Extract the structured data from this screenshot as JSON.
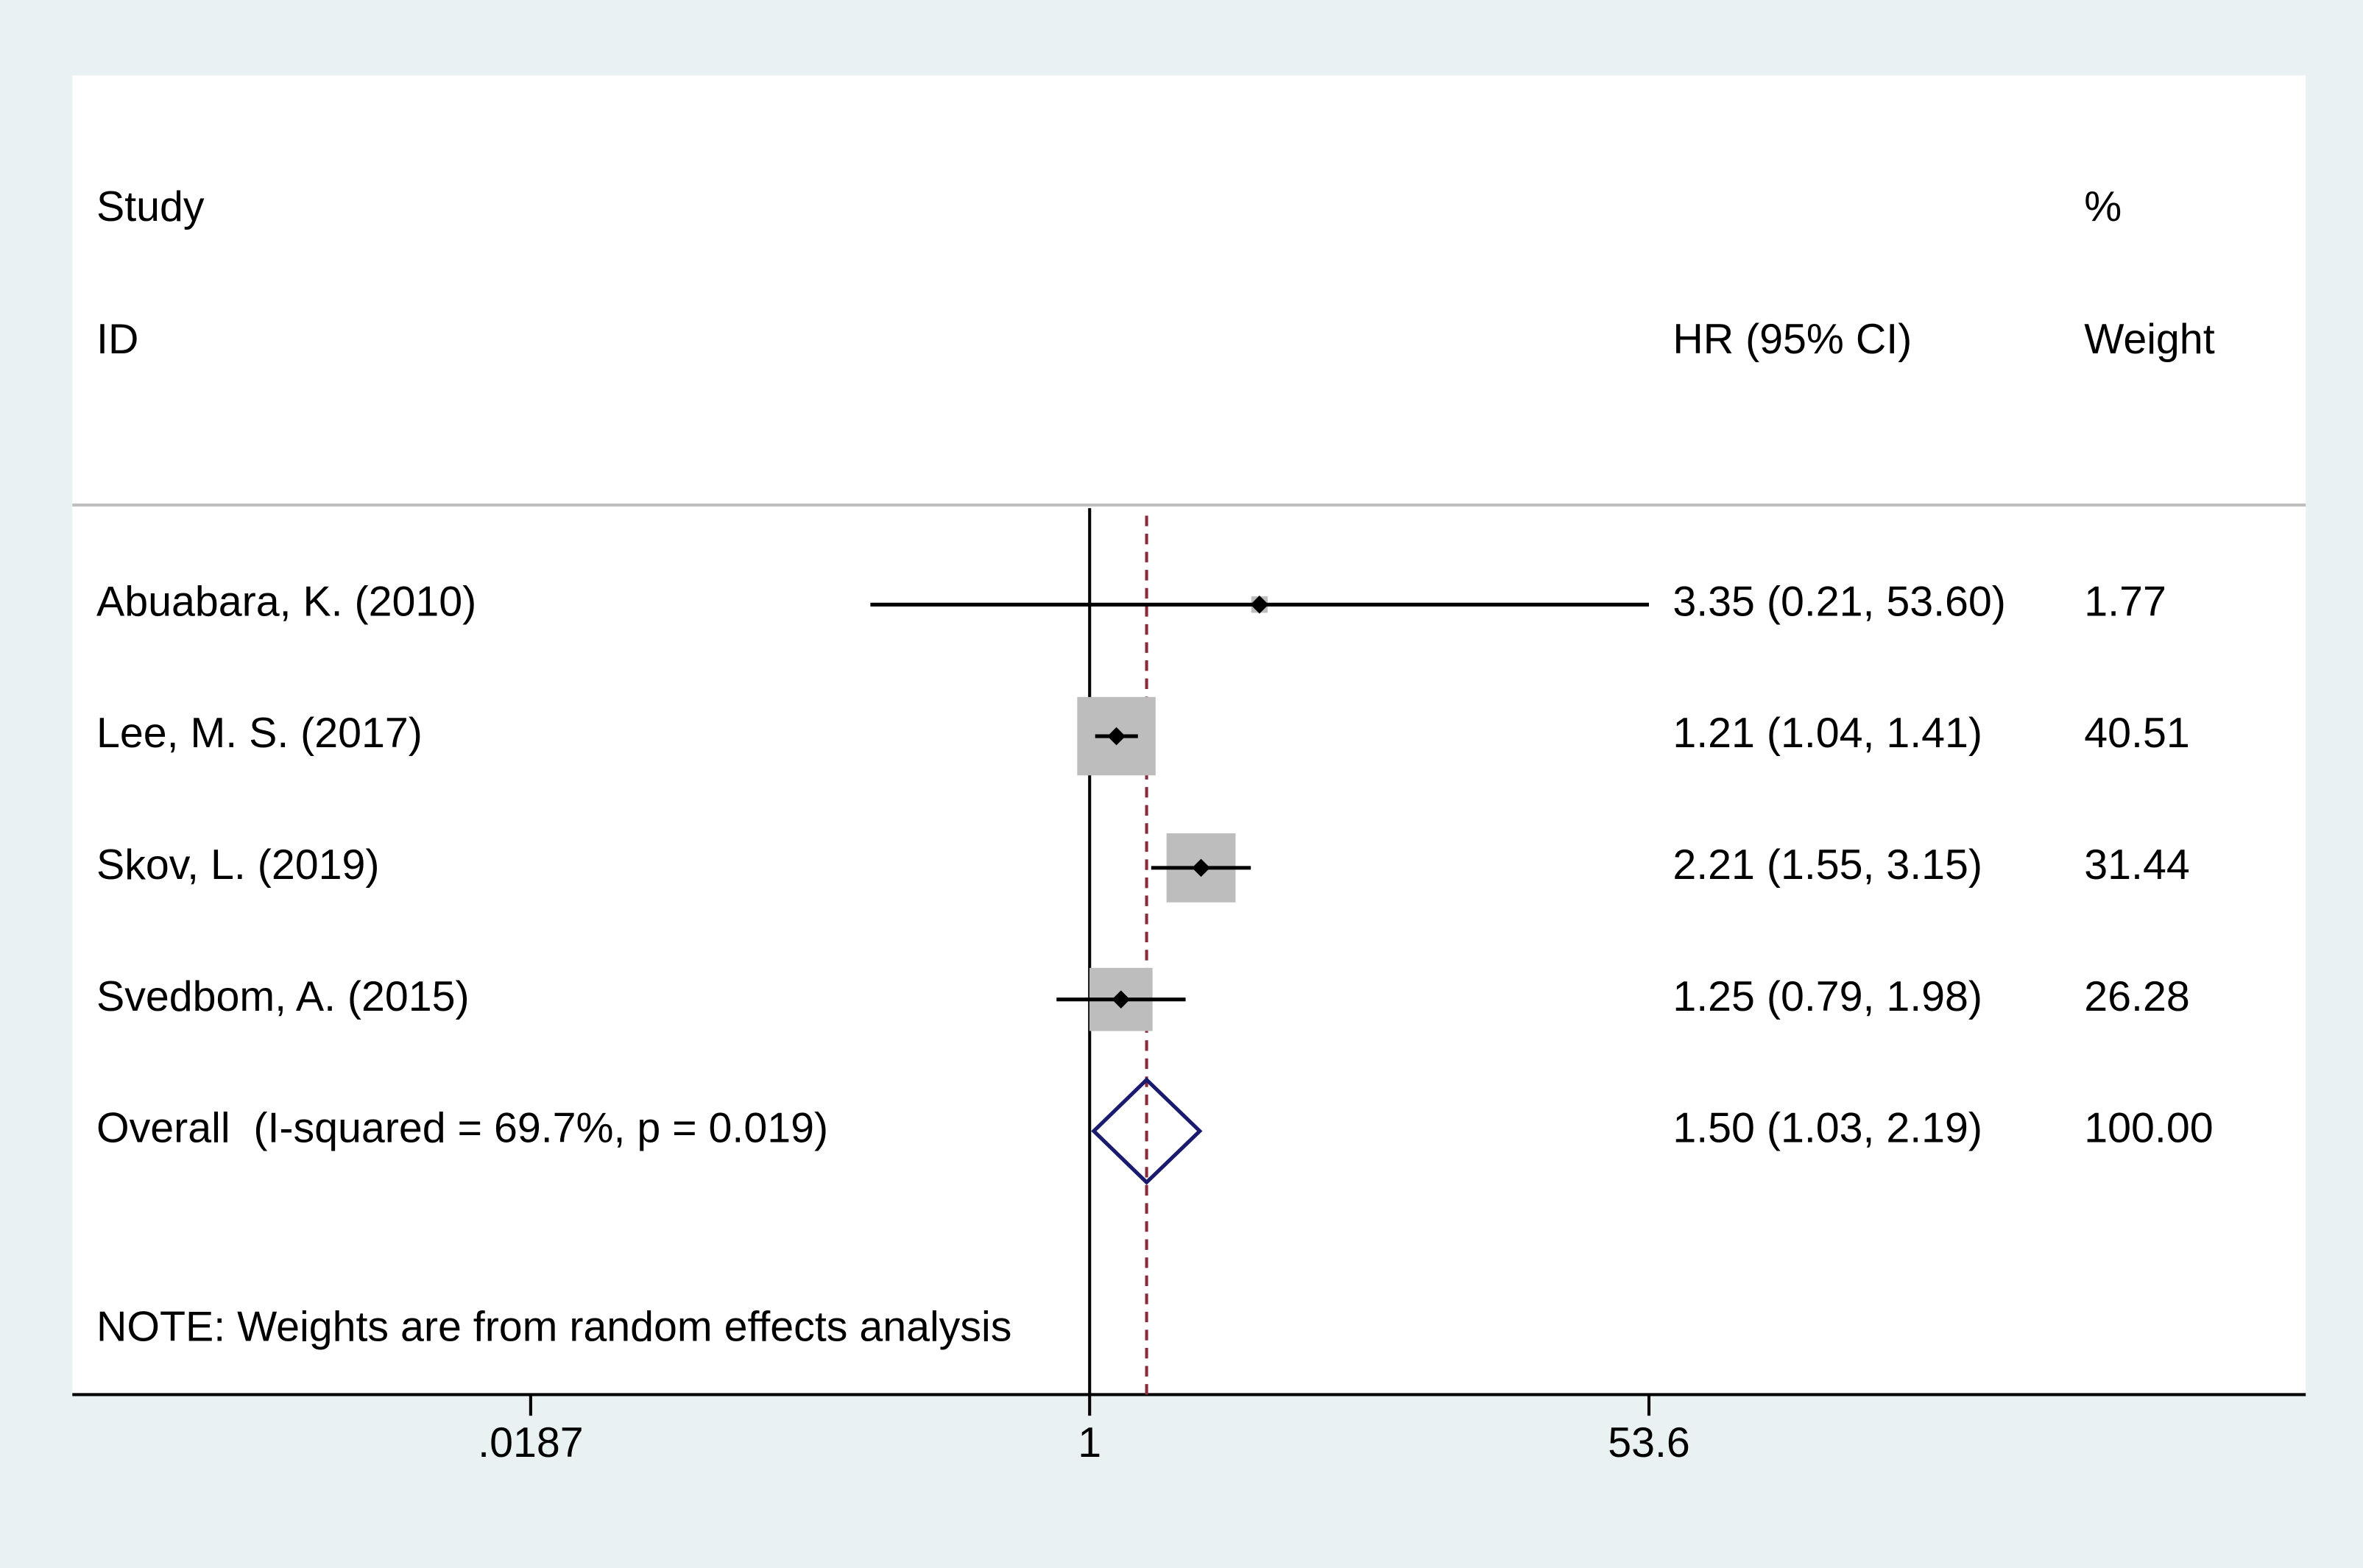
{
  "chart_data": {
    "type": "forest",
    "headers": {
      "study": "Study",
      "id": "ID",
      "effect": "HR (95% CI)",
      "pct": "%",
      "weight": "Weight"
    },
    "categories": [
      "Abuabara, K. (2010)",
      "Lee, M. S. (2017)",
      "Skov, L. (2019)",
      "Svedbom, A. (2015)"
    ],
    "values": [
      3.35,
      1.21,
      2.21,
      1.25
    ],
    "lower": [
      0.21,
      1.04,
      1.55,
      0.79
    ],
    "upper": [
      53.6,
      1.41,
      3.15,
      1.98
    ],
    "value_labels": [
      "3.35 (0.21, 53.60)",
      "1.21 (1.04, 1.41)",
      "2.21 (1.55, 3.15)",
      "1.25 (0.79, 1.98)"
    ],
    "weights": [
      1.77,
      40.51,
      31.44,
      26.28
    ],
    "overall": {
      "name": "Overall  (I-squared = 69.7%, p = 0.019)",
      "value": 1.5,
      "lower": 1.03,
      "upper": 2.19,
      "value_label": "1.50 (1.03, 2.19)",
      "weight": 100,
      "weight_label": "100.00"
    },
    "note": "NOTE: Weights are from random effects analysis",
    "log_scale": true,
    "xlim": [
      0.000716,
      5750
    ],
    "xticks": [
      {
        "value": 0.0187,
        "label": ".0187"
      },
      1,
      53.6
    ],
    "box_color": "#bdbdbd",
    "diamond_color": "#1a1a6e",
    "overall_line_color": "#8b2a3a"
  }
}
